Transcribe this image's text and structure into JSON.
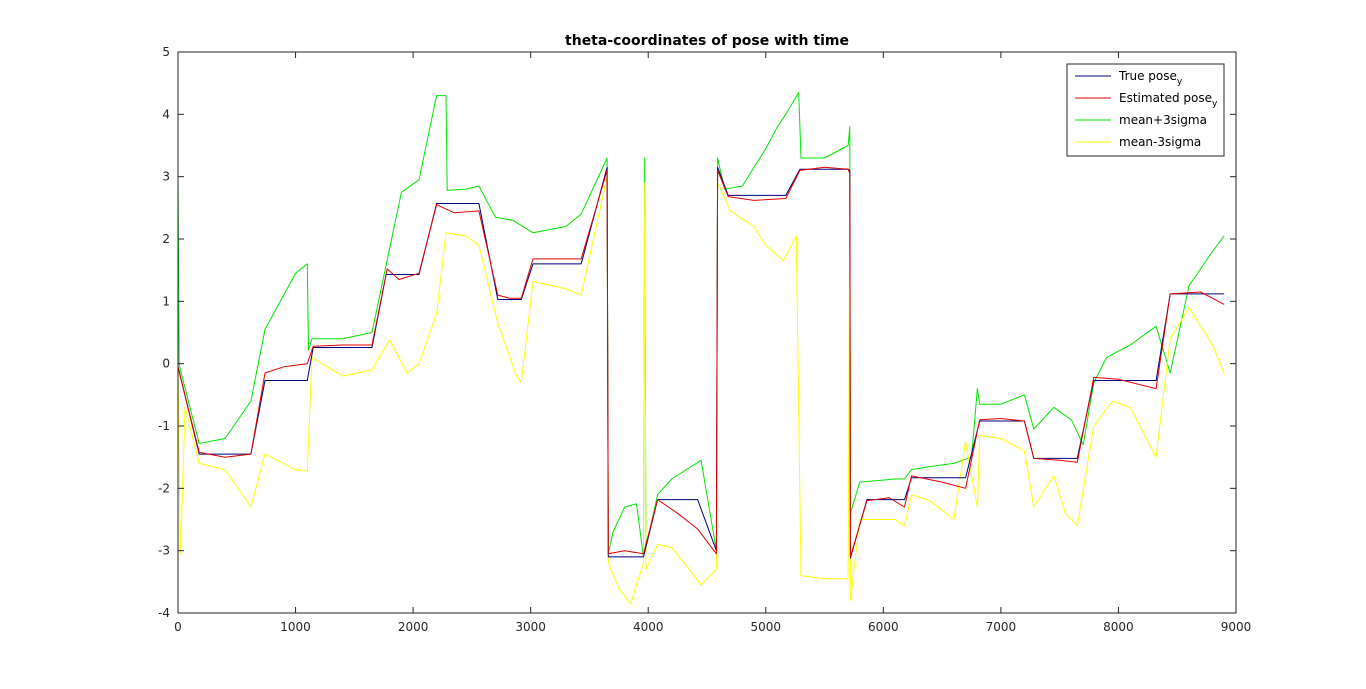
{
  "chart_data": {
    "type": "line",
    "title": "theta-coordinates of pose with time",
    "xlabel": "",
    "ylabel": "",
    "xlim": [
      0,
      9000
    ],
    "ylim": [
      -4,
      5
    ],
    "xticks": [
      0,
      1000,
      2000,
      3000,
      4000,
      5000,
      6000,
      7000,
      8000,
      9000
    ],
    "yticks": [
      -4,
      -3,
      -2,
      -1,
      0,
      1,
      2,
      3,
      4,
      5
    ],
    "grid": false,
    "legend_position": "top-right",
    "legend": [
      {
        "base": "True pose",
        "sub": "y",
        "color": "#00007f"
      },
      {
        "base": "Estimated pose",
        "sub": "y",
        "color": "#e60000"
      },
      {
        "base": "mean+3sigma",
        "sub": "",
        "color": "#00e600"
      },
      {
        "base": "mean-3sigma",
        "sub": "",
        "color": "#ffff00"
      }
    ],
    "series": [
      {
        "name": "True pose_y",
        "color": "#00007f",
        "x": [
          0,
          180,
          620,
          740,
          1100,
          1150,
          1650,
          1770,
          2050,
          2200,
          2560,
          2720,
          2920,
          3020,
          3430,
          3650,
          3660,
          3960,
          4080,
          4420,
          4580,
          4590,
          4680,
          5170,
          5290,
          5700,
          5715,
          5720,
          5860,
          6180,
          6240,
          6700,
          6820,
          7200,
          7280,
          7650,
          7790,
          8320,
          8440,
          8900
        ],
        "y": [
          -0.05,
          -1.45,
          -1.45,
          -0.27,
          -0.27,
          0.26,
          0.26,
          1.43,
          1.43,
          2.57,
          2.57,
          1.03,
          1.03,
          1.6,
          1.6,
          3.15,
          -3.1,
          -3.1,
          -2.18,
          -2.18,
          -3.0,
          3.15,
          2.7,
          2.7,
          3.12,
          3.12,
          3.1,
          -3.12,
          -2.18,
          -2.18,
          -1.83,
          -1.83,
          -0.92,
          -0.92,
          -1.52,
          -1.52,
          -0.27,
          -0.27,
          1.12,
          1.12
        ]
      },
      {
        "name": "Estimated pose_y",
        "color": "#e60000",
        "x": [
          0,
          180,
          400,
          620,
          740,
          900,
          1100,
          1150,
          1400,
          1650,
          1780,
          1880,
          2050,
          2200,
          2350,
          2560,
          2720,
          2820,
          2920,
          3020,
          3430,
          3650,
          3660,
          3800,
          3960,
          4080,
          4250,
          4420,
          4580,
          4590,
          4680,
          4900,
          5170,
          5290,
          5500,
          5700,
          5715,
          5720,
          5860,
          6050,
          6180,
          6240,
          6500,
          6700,
          6820,
          7000,
          7200,
          7280,
          7500,
          7650,
          7790,
          8000,
          8320,
          8440,
          8700,
          8900
        ],
        "y": [
          -0.05,
          -1.42,
          -1.5,
          -1.45,
          -0.15,
          -0.05,
          0.0,
          0.28,
          0.3,
          0.3,
          1.52,
          1.35,
          1.45,
          2.55,
          2.42,
          2.45,
          1.1,
          1.05,
          1.05,
          1.68,
          1.68,
          3.1,
          -3.05,
          -3.0,
          -3.05,
          -2.18,
          -2.4,
          -2.65,
          -3.05,
          3.1,
          2.68,
          2.62,
          2.65,
          3.1,
          3.15,
          3.12,
          3.05,
          -3.1,
          -2.2,
          -2.15,
          -2.3,
          -1.8,
          -1.9,
          -2.0,
          -0.9,
          -0.88,
          -0.92,
          -1.52,
          -1.55,
          -1.58,
          -0.22,
          -0.25,
          -0.4,
          1.12,
          1.15,
          0.95
        ]
      },
      {
        "name": "mean+3sigma",
        "color": "#00e600",
        "x": [
          0,
          10,
          20,
          180,
          400,
          620,
          740,
          1000,
          1100,
          1110,
          1140,
          1400,
          1650,
          1900,
          2050,
          2200,
          2280,
          2290,
          2450,
          2560,
          2700,
          2850,
          3020,
          3300,
          3430,
          3650,
          3660,
          3700,
          3800,
          3900,
          3960,
          3970,
          3980,
          4080,
          4200,
          4450,
          4580,
          4590,
          4650,
          4800,
          5000,
          5100,
          5170,
          5280,
          5300,
          5500,
          5700,
          5715,
          5720,
          5800,
          6100,
          6180,
          6240,
          6400,
          6600,
          6750,
          6800,
          6820,
          7000,
          7200,
          7280,
          7450,
          7600,
          7700,
          7790,
          7900,
          8100,
          8320,
          8440,
          8600,
          8800,
          8900
        ],
        "y": [
          3.0,
          0.0,
          -0.1,
          -1.28,
          -1.2,
          -0.6,
          0.55,
          1.45,
          1.6,
          0.22,
          0.4,
          0.4,
          0.5,
          2.75,
          2.95,
          4.3,
          4.3,
          2.78,
          2.8,
          2.85,
          2.35,
          2.3,
          2.1,
          2.2,
          2.4,
          3.3,
          -3.05,
          -2.7,
          -2.3,
          -2.25,
          -3.1,
          3.3,
          -2.95,
          -2.1,
          -1.85,
          -1.55,
          -3.0,
          3.3,
          2.8,
          2.85,
          3.45,
          3.8,
          4.0,
          4.35,
          3.3,
          3.3,
          3.5,
          3.8,
          -2.4,
          -1.9,
          -1.85,
          -1.85,
          -1.7,
          -1.65,
          -1.6,
          -1.5,
          -0.4,
          -0.65,
          -0.65,
          -0.5,
          -1.05,
          -0.7,
          -0.9,
          -1.3,
          -0.3,
          0.1,
          0.3,
          0.6,
          -0.15,
          1.25,
          1.8,
          2.05
        ]
      },
      {
        "name": "mean-3sigma",
        "color": "#ffff00",
        "x": [
          0,
          20,
          60,
          180,
          400,
          620,
          740,
          1000,
          1100,
          1140,
          1400,
          1650,
          1800,
          1950,
          2050,
          2200,
          2280,
          2450,
          2560,
          2720,
          2880,
          2920,
          3020,
          3300,
          3430,
          3650,
          3660,
          3750,
          3850,
          3960,
          3970,
          3980,
          4080,
          4200,
          4350,
          4450,
          4580,
          4590,
          4700,
          4900,
          5000,
          5150,
          5260,
          5300,
          5500,
          5700,
          5715,
          5720,
          5800,
          6100,
          6180,
          6240,
          6400,
          6600,
          6700,
          6800,
          6820,
          7000,
          7200,
          7280,
          7450,
          7550,
          7650,
          7790,
          7950,
          8100,
          8320,
          8440,
          8600,
          8800,
          8900
        ],
        "y": [
          -0.1,
          -3.05,
          -0.7,
          -1.6,
          -1.7,
          -2.3,
          -1.45,
          -1.7,
          -1.72,
          0.1,
          -0.2,
          -0.1,
          0.38,
          -0.15,
          0.0,
          0.8,
          2.1,
          2.05,
          1.9,
          0.65,
          -0.2,
          -0.3,
          1.32,
          1.2,
          1.1,
          3.0,
          -3.2,
          -3.6,
          -3.85,
          -3.2,
          2.9,
          -3.3,
          -2.9,
          -2.95,
          -3.3,
          -3.55,
          -3.3,
          2.9,
          2.45,
          2.2,
          1.9,
          1.65,
          2.05,
          -3.4,
          -3.45,
          -3.45,
          2.5,
          -3.8,
          -2.5,
          -2.5,
          -2.6,
          -2.1,
          -2.2,
          -2.5,
          -1.25,
          -2.3,
          -1.15,
          -1.2,
          -1.4,
          -2.3,
          -1.8,
          -2.4,
          -2.6,
          -1.0,
          -0.6,
          -0.7,
          -1.5,
          0.4,
          0.9,
          0.3,
          -0.15
        ]
      }
    ]
  }
}
